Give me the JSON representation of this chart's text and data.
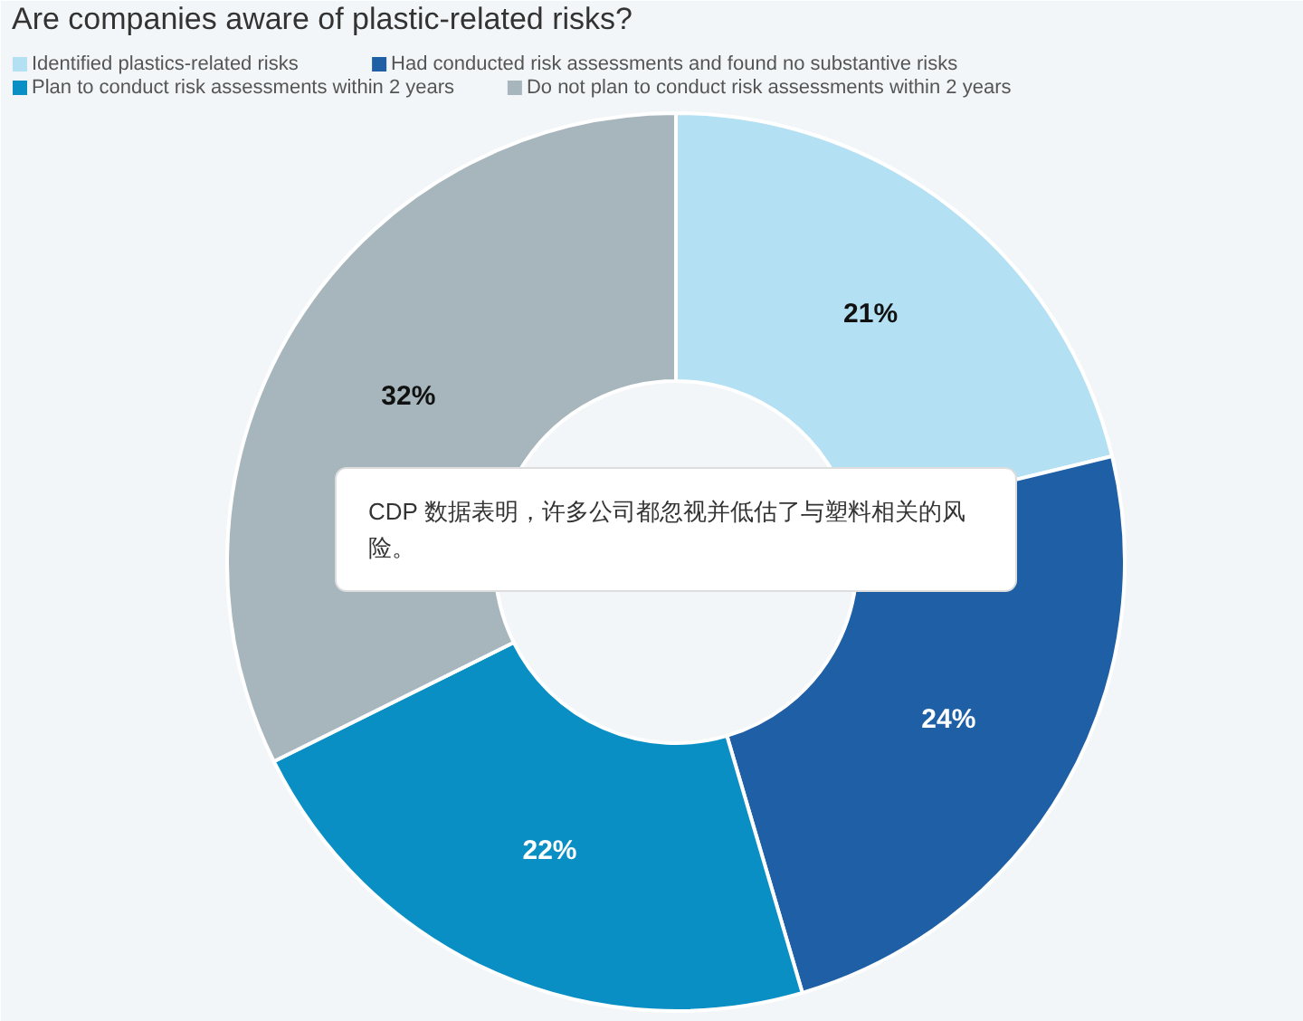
{
  "chart_data": {
    "type": "donut",
    "title": "Are companies aware of plastic-related risks?",
    "categories": [
      "Identified plastics-related risks",
      "Had conducted risk assessments and found no substantive risks",
      "Plan to conduct risk assessments within 2 years",
      "Do not plan to conduct risk assessments within 2 years"
    ],
    "values": [
      21,
      24,
      22,
      32
    ],
    "colors": [
      "#b3e0f2",
      "#1f5fa6",
      "#0a8fc4",
      "#a7b6bd"
    ],
    "value_labels": [
      "21%",
      "24%",
      "22%",
      "32%"
    ],
    "legend": "top",
    "annotations": [
      "CDP 数据表明，许多公司都忽视并低估了与塑料相关的风险。"
    ]
  }
}
